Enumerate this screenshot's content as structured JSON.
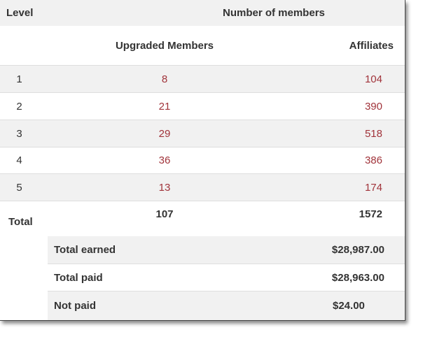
{
  "header": {
    "level": "Level",
    "number_of_members": "Number of members",
    "upgraded_members": "Upgraded Members",
    "affiliates": "Affiliates"
  },
  "rows": [
    {
      "level": "1",
      "upgraded": "8",
      "affiliates": "104"
    },
    {
      "level": "2",
      "upgraded": "21",
      "affiliates": "390"
    },
    {
      "level": "3",
      "upgraded": "29",
      "affiliates": "518"
    },
    {
      "level": "4",
      "upgraded": "36",
      "affiliates": "386"
    },
    {
      "level": "5",
      "upgraded": "13",
      "affiliates": "174"
    }
  ],
  "total": {
    "label": "Total",
    "upgraded": "107",
    "affiliates": "1572"
  },
  "summary": [
    {
      "label": "Total earned",
      "value": "$28,987.00"
    },
    {
      "label": "Total paid",
      "value": "$28,963.00"
    },
    {
      "label": "Not paid",
      "value": "$24.00"
    }
  ],
  "colors": {
    "link_red": "#a1343b",
    "row_shade": "#f1f1f1"
  }
}
